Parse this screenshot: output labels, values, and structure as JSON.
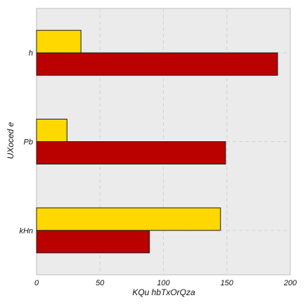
{
  "chart_data": {
    "type": "bar",
    "orientation": "horizontal",
    "categories": [
      "kHn",
      "Pb",
      "h"
    ],
    "series": [
      {
        "values": [
          89,
          149,
          190
        ],
        "color": "#bb0000"
      },
      {
        "values": [
          145,
          24,
          35
        ],
        "color": "#ffd800"
      }
    ],
    "xlabel": "KQu hbTxOrQza",
    "ylabel": "UXoced e",
    "xlim": [
      0,
      200
    ],
    "xticks": [
      0,
      50,
      100,
      150,
      200
    ],
    "grid": true,
    "background": "#ebebeb"
  }
}
